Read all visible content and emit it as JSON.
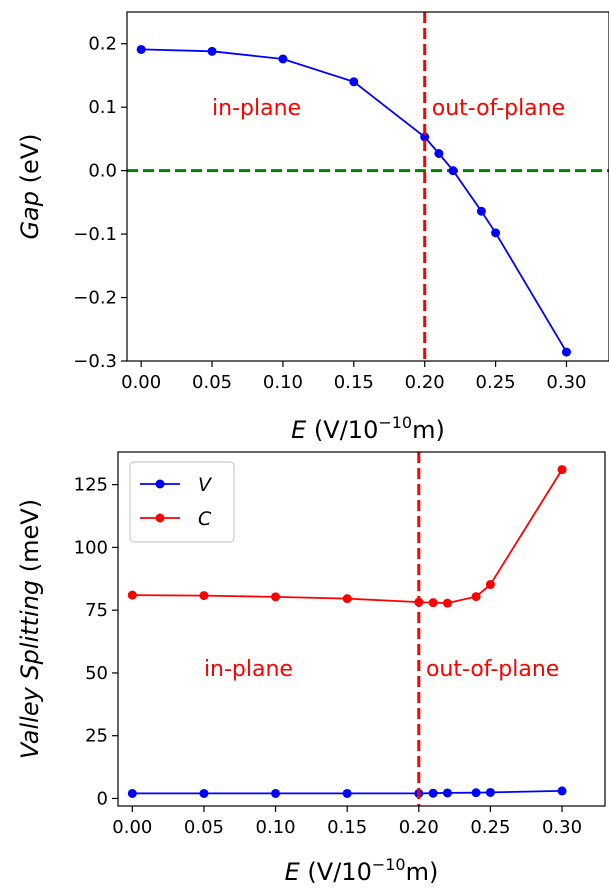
{
  "chart_data": [
    {
      "type": "line",
      "xlabel": {
        "italic": "E",
        "unit": "(V/10",
        "sup": "−10",
        "unit_end": "m)"
      },
      "ylabel": {
        "italic": "Gap",
        "unit": "(eV)"
      },
      "xlim": [
        -0.01,
        0.33
      ],
      "ylim": [
        -0.3,
        0.25
      ],
      "xticks": [
        0.0,
        0.05,
        0.1,
        0.15,
        0.2,
        0.25,
        0.3
      ],
      "xtick_labels": [
        "0.00",
        "0.05",
        "0.10",
        "0.15",
        "0.20",
        "0.25",
        "0.30"
      ],
      "yticks": [
        0.2,
        0.1,
        0.0,
        -0.1,
        -0.2,
        -0.3
      ],
      "ytick_labels": [
        "0.2",
        "0.1",
        "0.0",
        "−0.1",
        "−0.2",
        "−0.3"
      ],
      "series": [
        {
          "color": "#0000ff",
          "x": [
            0.0,
            0.05,
            0.1,
            0.15,
            0.2,
            0.21,
            0.22,
            0.24,
            0.25,
            0.3
          ],
          "y": [
            0.191,
            0.188,
            0.176,
            0.14,
            0.053,
            0.027,
            0.0,
            -0.064,
            -0.098,
            -0.286
          ]
        }
      ],
      "vline": {
        "x": 0.2,
        "color": "#ff0000",
        "style": "dashed"
      },
      "hline": {
        "y": 0.0,
        "color": "#008000",
        "style": "dashed"
      },
      "annotations": [
        {
          "text": "in-plane",
          "x": 0.05,
          "y": 0.1,
          "color": "#ff0000"
        },
        {
          "text": "out-of-plane",
          "x": 0.205,
          "y": 0.1,
          "color": "#ff0000"
        }
      ]
    },
    {
      "type": "line",
      "xlabel": {
        "italic": "E",
        "unit": "(V/10",
        "sup": "−10",
        "unit_end": "m)"
      },
      "ylabel": {
        "italic": "Valley Splitting",
        "unit": "(meV)"
      },
      "xlim": [
        -0.01,
        0.33
      ],
      "ylim": [
        -3,
        138
      ],
      "xticks": [
        0.0,
        0.05,
        0.1,
        0.15,
        0.2,
        0.25,
        0.3
      ],
      "xtick_labels": [
        "0.00",
        "0.05",
        "0.10",
        "0.15",
        "0.20",
        "0.25",
        "0.30"
      ],
      "yticks": [
        0,
        25,
        50,
        75,
        100,
        125
      ],
      "ytick_labels": [
        "0",
        "25",
        "50",
        "75",
        "100",
        "125"
      ],
      "legend": {
        "placement": "upper-left"
      },
      "series": [
        {
          "name": "V",
          "color": "#0000ff",
          "x": [
            0.0,
            0.05,
            0.1,
            0.15,
            0.2,
            0.21,
            0.22,
            0.24,
            0.25,
            0.3
          ],
          "y": [
            2.0,
            2.0,
            2.0,
            2.0,
            2.0,
            2.1,
            2.2,
            2.3,
            2.4,
            3.0
          ]
        },
        {
          "name": "C",
          "color": "#ff0000",
          "x": [
            0.0,
            0.05,
            0.1,
            0.15,
            0.2,
            0.21,
            0.22,
            0.24,
            0.25,
            0.3
          ],
          "y": [
            81.0,
            80.8,
            80.3,
            79.6,
            78.2,
            78.0,
            77.8,
            80.4,
            85.2,
            131.0
          ]
        }
      ],
      "vline": {
        "x": 0.2,
        "color": "#ff0000",
        "style": "dashed"
      },
      "annotations": [
        {
          "text": "in-plane",
          "x": 0.05,
          "y": 52,
          "color": "#ff0000"
        },
        {
          "text": "out-of-plane",
          "x": 0.205,
          "y": 52,
          "color": "#ff0000"
        }
      ]
    }
  ]
}
